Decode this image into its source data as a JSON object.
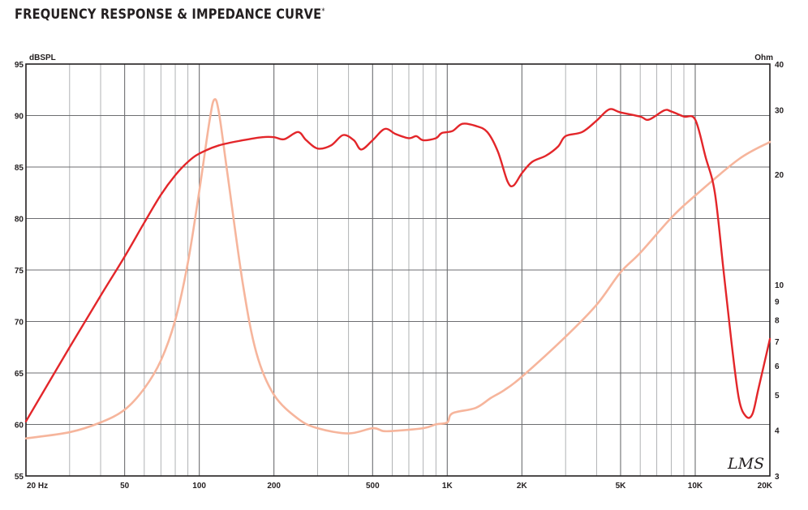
{
  "title": "FREQUENCY RESPONSE & IMPEDANCE CURVE",
  "title_mark": "*",
  "logo_text": "LMS",
  "chart_data": {
    "type": "line",
    "title": "FREQUENCY RESPONSE & IMPEDANCE CURVE*",
    "x_scale": "log",
    "xlim": [
      20,
      20000
    ],
    "x_tick_labels": [
      {
        "value": 20,
        "label": "20  Hz"
      },
      {
        "value": 50,
        "label": "50"
      },
      {
        "value": 100,
        "label": "100"
      },
      {
        "value": 200,
        "label": "200"
      },
      {
        "value": 500,
        "label": "500"
      },
      {
        "value": 1000,
        "label": "1K"
      },
      {
        "value": 2000,
        "label": "2K"
      },
      {
        "value": 5000,
        "label": "5K"
      },
      {
        "value": 10000,
        "label": "10K"
      },
      {
        "value": 20000,
        "label": "20K"
      }
    ],
    "y_left": {
      "label": "dBSPL",
      "lim": [
        55,
        95
      ],
      "ticks": [
        55,
        60,
        65,
        70,
        75,
        80,
        85,
        90,
        95
      ]
    },
    "y_right": {
      "label": "Ohm",
      "scale": "log",
      "lim": [
        3,
        40
      ],
      "ticks": [
        3,
        4,
        5,
        6,
        7,
        8,
        9,
        10,
        20,
        30,
        40
      ]
    },
    "grid": true,
    "series": [
      {
        "axis": "left",
        "color": "#e3262a",
        "points": [
          [
            20,
            60.3
          ],
          [
            30,
            67.5
          ],
          [
            40,
            72.5
          ],
          [
            50,
            76.3
          ],
          [
            60,
            79.6
          ],
          [
            70,
            82.3
          ],
          [
            80,
            84.2
          ],
          [
            90,
            85.5
          ],
          [
            100,
            86.3
          ],
          [
            120,
            87.1
          ],
          [
            150,
            87.6
          ],
          [
            180,
            87.9
          ],
          [
            200,
            87.9
          ],
          [
            220,
            87.7
          ],
          [
            250,
            88.4
          ],
          [
            270,
            87.6
          ],
          [
            300,
            86.8
          ],
          [
            340,
            87.1
          ],
          [
            380,
            88.1
          ],
          [
            420,
            87.6
          ],
          [
            450,
            86.7
          ],
          [
            500,
            87.6
          ],
          [
            560,
            88.7
          ],
          [
            620,
            88.2
          ],
          [
            700,
            87.8
          ],
          [
            750,
            88.0
          ],
          [
            800,
            87.6
          ],
          [
            900,
            87.8
          ],
          [
            950,
            88.3
          ],
          [
            1050,
            88.5
          ],
          [
            1150,
            89.2
          ],
          [
            1300,
            89.0
          ],
          [
            1450,
            88.4
          ],
          [
            1600,
            86.5
          ],
          [
            1750,
            83.6
          ],
          [
            1850,
            83.2
          ],
          [
            2000,
            84.4
          ],
          [
            2200,
            85.5
          ],
          [
            2500,
            86.1
          ],
          [
            2800,
            87.0
          ],
          [
            3000,
            88.0
          ],
          [
            3500,
            88.4
          ],
          [
            4000,
            89.5
          ],
          [
            4500,
            90.6
          ],
          [
            5000,
            90.3
          ],
          [
            6000,
            89.9
          ],
          [
            6500,
            89.6
          ],
          [
            7500,
            90.5
          ],
          [
            8000,
            90.4
          ],
          [
            9000,
            89.9
          ],
          [
            10000,
            89.6
          ],
          [
            11000,
            86.0
          ],
          [
            12000,
            82.5
          ],
          [
            13000,
            75.0
          ],
          [
            14000,
            68.0
          ],
          [
            15000,
            62.5
          ],
          [
            16000,
            60.8
          ],
          [
            17000,
            61.0
          ],
          [
            18000,
            63.5
          ],
          [
            20000,
            68.3
          ]
        ]
      },
      {
        "axis": "right",
        "color": "#f6b59c",
        "points": [
          [
            20,
            3.8
          ],
          [
            30,
            3.95
          ],
          [
            40,
            4.2
          ],
          [
            50,
            4.55
          ],
          [
            60,
            5.2
          ],
          [
            70,
            6.2
          ],
          [
            80,
            8.0
          ],
          [
            90,
            11.5
          ],
          [
            100,
            18.0
          ],
          [
            110,
            28.0
          ],
          [
            115,
            32.0
          ],
          [
            120,
            29.5
          ],
          [
            130,
            20.0
          ],
          [
            150,
            10.0
          ],
          [
            170,
            6.5
          ],
          [
            200,
            5.0
          ],
          [
            250,
            4.3
          ],
          [
            300,
            4.05
          ],
          [
            400,
            3.92
          ],
          [
            500,
            4.05
          ],
          [
            550,
            3.98
          ],
          [
            600,
            3.98
          ],
          [
            800,
            4.05
          ],
          [
            900,
            4.15
          ],
          [
            1000,
            4.2
          ],
          [
            1050,
            4.45
          ],
          [
            1300,
            4.6
          ],
          [
            1500,
            4.9
          ],
          [
            1700,
            5.15
          ],
          [
            2000,
            5.6
          ],
          [
            3000,
            7.2
          ],
          [
            4000,
            8.8
          ],
          [
            5000,
            10.8
          ],
          [
            6000,
            12.2
          ],
          [
            8000,
            15.2
          ],
          [
            10000,
            17.5
          ],
          [
            15000,
            22.0
          ],
          [
            20000,
            24.5
          ]
        ]
      }
    ]
  }
}
